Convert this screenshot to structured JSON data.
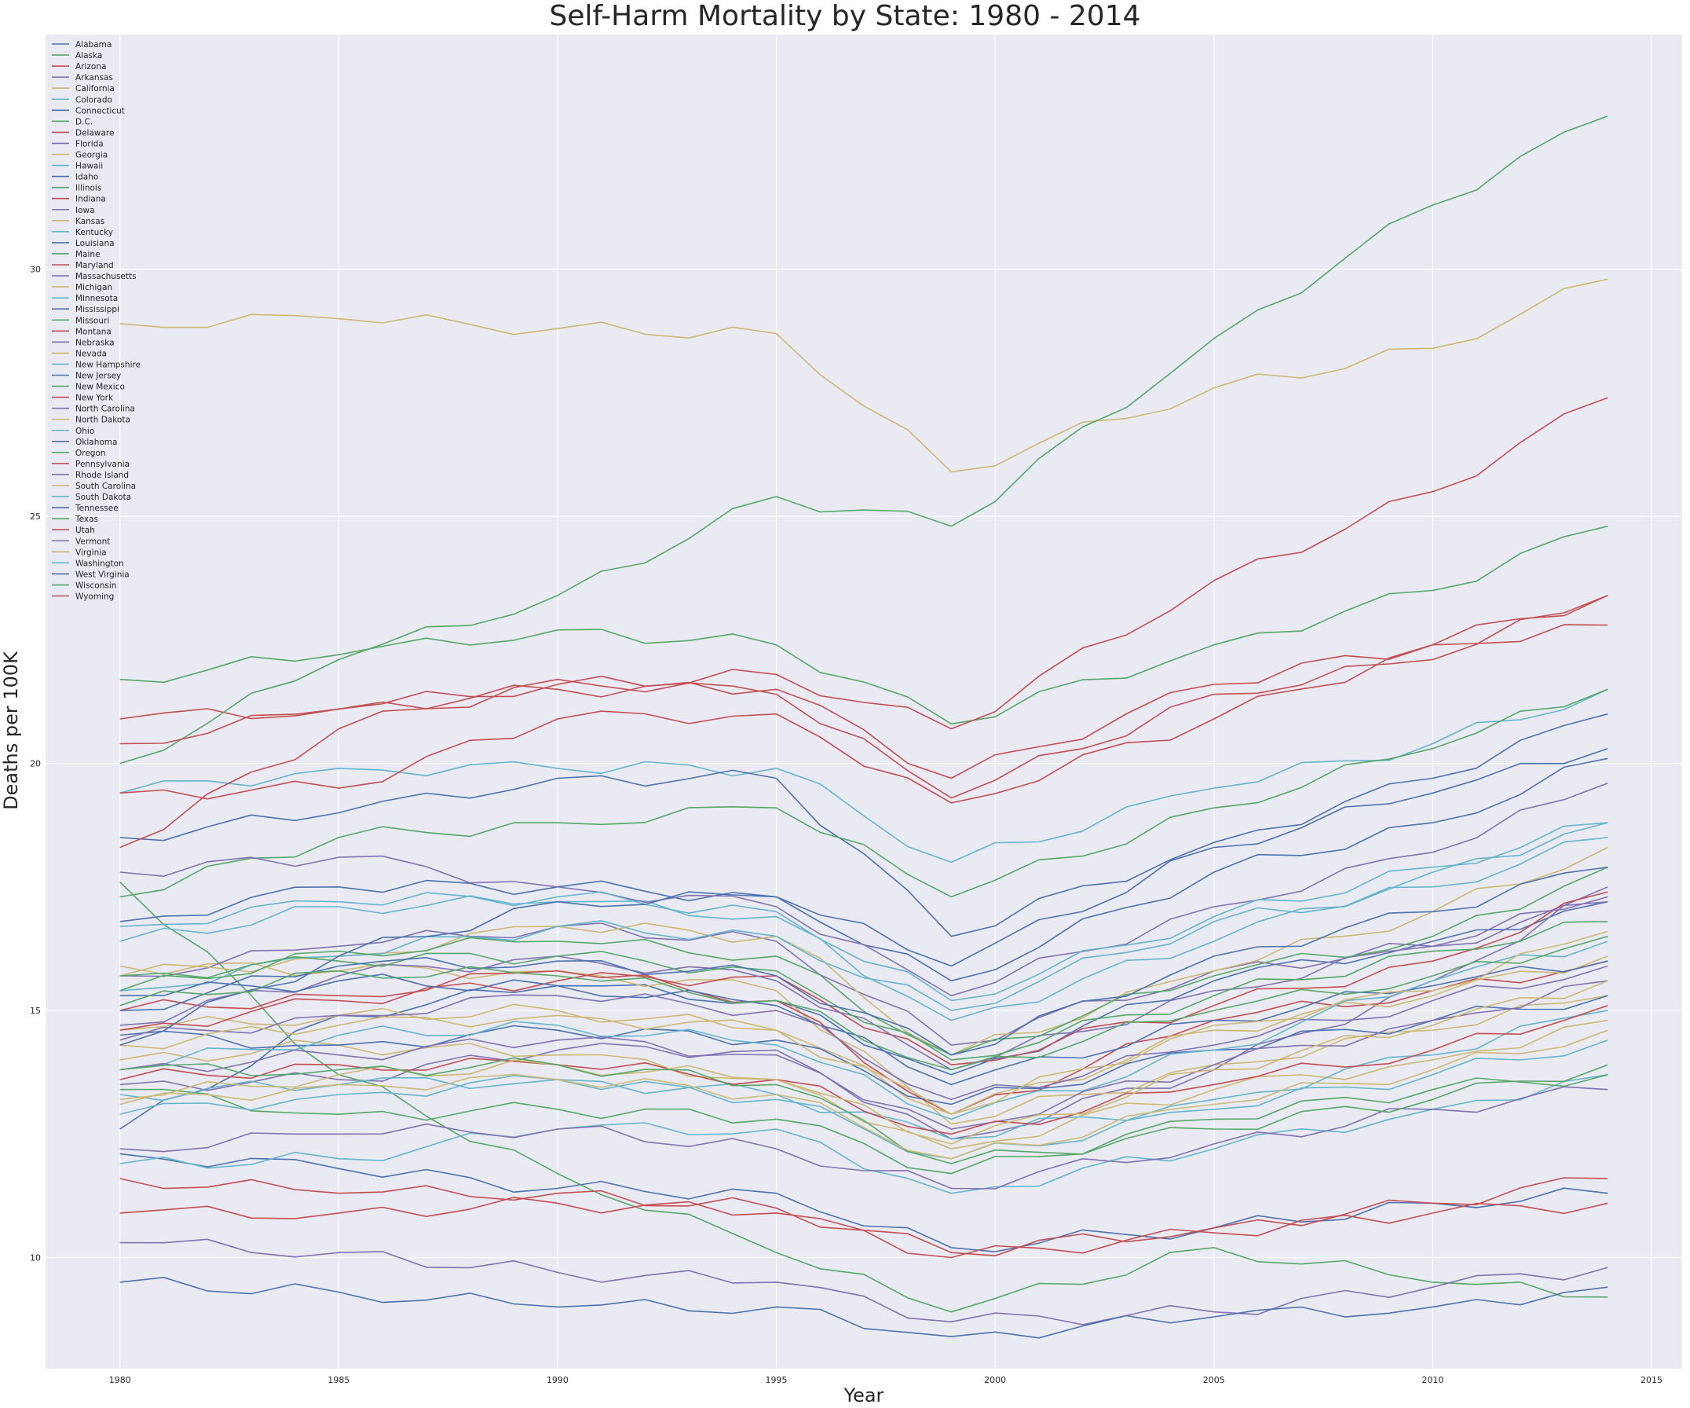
{
  "chart_data": {
    "type": "line",
    "title": "Self-Harm Mortality by State: 1980 - 2014",
    "xlabel": "Year",
    "ylabel": "Deaths per 100K",
    "xlim": [
      1978.3,
      2015.7
    ],
    "ylim": [
      7.75,
      34.75
    ],
    "x_ticks": [
      1980,
      1985,
      1990,
      1995,
      2000,
      2005,
      2010,
      2015
    ],
    "y_ticks": [
      10,
      15,
      20,
      25,
      30
    ],
    "grid": true,
    "legend_position": "top-left",
    "anchor_years": [
      1980,
      1985,
      1990,
      1995,
      1999,
      2005,
      2010,
      2014
    ],
    "series": [
      {
        "name": "Alabama",
        "color": "#4C72B0",
        "anchors": [
          12.6,
          14.9,
          15.5,
          15.2,
          13.7,
          15.6,
          16.4,
          17.2
        ]
      },
      {
        "name": "Alaska",
        "color": "#55A868",
        "anchors": [
          21.7,
          22.2,
          22.7,
          22.4,
          20.8,
          22.4,
          23.5,
          24.8
        ]
      },
      {
        "name": "Arizona",
        "color": "#C44E52",
        "anchors": [
          20.9,
          21.1,
          21.5,
          21.5,
          19.7,
          21.6,
          22.4,
          23.4
        ]
      },
      {
        "name": "Arkansas",
        "color": "#8172B2",
        "anchors": [
          13.5,
          13.6,
          14.2,
          14.2,
          12.4,
          13.8,
          15.6,
          17.5
        ]
      },
      {
        "name": "California",
        "color": "#CCB974",
        "anchors": [
          15.9,
          15.8,
          15.8,
          15.4,
          12.7,
          13.9,
          14.6,
          15.3
        ]
      },
      {
        "name": "Colorado",
        "color": "#64B5CD",
        "anchors": [
          19.4,
          19.9,
          19.9,
          19.9,
          18.0,
          19.5,
          20.4,
          21.5
        ]
      },
      {
        "name": "Connecticut",
        "color": "#4C72B0",
        "anchors": [
          12.1,
          11.8,
          11.4,
          11.3,
          10.2,
          10.6,
          11.1,
          11.3
        ]
      },
      {
        "name": "D.C.",
        "color": "#55A868",
        "anchors": [
          17.6,
          13.7,
          11.7,
          10.1,
          8.9,
          10.2,
          9.5,
          9.2
        ]
      },
      {
        "name": "Delaware",
        "color": "#C44E52",
        "anchors": [
          15.0,
          15.3,
          15.8,
          15.2,
          12.9,
          14.8,
          15.4,
          16.0
        ]
      },
      {
        "name": "Florida",
        "color": "#8172B2",
        "anchors": [
          15.7,
          16.3,
          16.7,
          16.4,
          14.3,
          15.8,
          16.3,
          17.2
        ]
      },
      {
        "name": "Georgia",
        "color": "#CCB974",
        "anchors": [
          14.6,
          14.9,
          15.0,
          14.6,
          12.9,
          14.6,
          15.3,
          16.1
        ]
      },
      {
        "name": "Hawaii",
        "color": "#64B5CD",
        "anchors": [
          11.9,
          12.0,
          12.6,
          12.6,
          11.3,
          12.2,
          13.0,
          13.7
        ]
      },
      {
        "name": "Idaho",
        "color": "#4C72B0",
        "anchors": [
          18.5,
          19.0,
          19.7,
          19.7,
          16.5,
          18.4,
          19.7,
          21.0
        ]
      },
      {
        "name": "Illinois",
        "color": "#55A868",
        "anchors": [
          13.4,
          12.9,
          13.0,
          12.8,
          11.7,
          12.8,
          13.4,
          13.7
        ]
      },
      {
        "name": "Indiana",
        "color": "#C44E52",
        "anchors": [
          14.6,
          15.2,
          15.6,
          15.7,
          13.9,
          15.1,
          16.0,
          17.4
        ]
      },
      {
        "name": "Iowa",
        "color": "#8172B2",
        "anchors": [
          14.7,
          15.7,
          16.1,
          15.6,
          13.8,
          15.4,
          16.3,
          17.3
        ]
      },
      {
        "name": "Kansas",
        "color": "#CCB974",
        "anchors": [
          15.7,
          16.1,
          16.7,
          16.5,
          14.1,
          15.8,
          17.0,
          18.3
        ]
      },
      {
        "name": "Kentucky",
        "color": "#64B5CD",
        "anchors": [
          15.4,
          16.1,
          16.7,
          16.5,
          15.0,
          16.8,
          17.5,
          18.5
        ]
      },
      {
        "name": "Louisiana",
        "color": "#4C72B0",
        "anchors": [
          15.3,
          15.6,
          15.5,
          15.1,
          13.5,
          14.8,
          15.5,
          16.0
        ]
      },
      {
        "name": "Maine",
        "color": "#55A868",
        "anchors": [
          15.4,
          16.2,
          16.4,
          16.1,
          14.1,
          15.7,
          16.5,
          17.9
        ]
      },
      {
        "name": "Maryland",
        "color": "#C44E52",
        "anchors": [
          11.6,
          11.3,
          11.3,
          11.0,
          10.1,
          10.6,
          11.1,
          11.6
        ]
      },
      {
        "name": "Massachusetts",
        "color": "#8172B2",
        "anchors": [
          10.3,
          10.1,
          9.7,
          9.5,
          8.7,
          8.9,
          9.4,
          9.8
        ]
      },
      {
        "name": "Michigan",
        "color": "#CCB974",
        "anchors": [
          14.0,
          14.3,
          14.1,
          13.6,
          12.2,
          13.4,
          14.0,
          14.8
        ]
      },
      {
        "name": "Minnesota",
        "color": "#64B5CD",
        "anchors": [
          13.3,
          13.5,
          13.6,
          13.3,
          12.4,
          13.2,
          14.1,
          15.0
        ]
      },
      {
        "name": "Mississippi",
        "color": "#4C72B0",
        "anchors": [
          14.5,
          14.3,
          14.6,
          14.4,
          13.1,
          14.2,
          14.8,
          15.3
        ]
      },
      {
        "name": "Missouri",
        "color": "#55A868",
        "anchors": [
          15.7,
          16.0,
          16.1,
          15.8,
          14.0,
          15.3,
          16.2,
          16.8
        ]
      },
      {
        "name": "Montana",
        "color": "#C44E52",
        "anchors": [
          18.3,
          20.7,
          21.7,
          21.4,
          19.3,
          21.4,
          22.1,
          23.4
        ]
      },
      {
        "name": "Nebraska",
        "color": "#8172B2",
        "anchors": [
          14.4,
          14.9,
          15.3,
          15.0,
          13.2,
          14.3,
          15.2,
          15.9
        ]
      },
      {
        "name": "Nevada",
        "color": "#CCB974",
        "anchors": [
          28.9,
          29.0,
          28.8,
          28.7,
          25.9,
          27.6,
          28.4,
          29.8
        ]
      },
      {
        "name": "New Hampshire",
        "color": "#64B5CD",
        "anchors": [
          13.8,
          14.5,
          14.7,
          14.3,
          12.8,
          14.2,
          15.6,
          16.4
        ]
      },
      {
        "name": "New Jersey",
        "color": "#4C72B0",
        "anchors": [
          9.5,
          9.3,
          9.0,
          9.0,
          8.4,
          8.8,
          9.0,
          9.4
        ]
      },
      {
        "name": "New Mexico",
        "color": "#55A868",
        "anchors": [
          20.0,
          22.1,
          23.4,
          25.4,
          24.8,
          28.6,
          31.3,
          33.1
        ]
      },
      {
        "name": "New York",
        "color": "#C44E52",
        "anchors": [
          10.9,
          10.9,
          11.1,
          10.9,
          10.0,
          10.5,
          10.9,
          11.1
        ]
      },
      {
        "name": "North Carolina",
        "color": "#8172B2",
        "anchors": [
          13.8,
          14.1,
          14.4,
          14.1,
          12.6,
          13.9,
          14.8,
          15.6
        ]
      },
      {
        "name": "North Dakota",
        "color": "#CCB974",
        "anchors": [
          14.3,
          14.7,
          14.9,
          14.6,
          12.9,
          14.7,
          15.4,
          16.6
        ]
      },
      {
        "name": "Ohio",
        "color": "#64B5CD",
        "anchors": [
          12.9,
          13.3,
          13.6,
          13.2,
          12.0,
          13.0,
          13.7,
          14.4
        ]
      },
      {
        "name": "Oklahoma",
        "color": "#4C72B0",
        "anchors": [
          16.8,
          17.5,
          17.5,
          17.3,
          15.6,
          17.8,
          18.8,
          20.1
        ]
      },
      {
        "name": "Oregon",
        "color": "#55A868",
        "anchors": [
          17.3,
          18.5,
          18.8,
          19.1,
          17.3,
          19.1,
          20.3,
          21.5
        ]
      },
      {
        "name": "Pennsylvania",
        "color": "#C44E52",
        "anchors": [
          13.6,
          13.9,
          13.9,
          13.6,
          12.5,
          13.5,
          14.2,
          15.1
        ]
      },
      {
        "name": "Rhode Island",
        "color": "#8172B2",
        "anchors": [
          12.2,
          12.5,
          12.6,
          12.2,
          11.4,
          12.3,
          13.0,
          13.4
        ]
      },
      {
        "name": "South Carolina",
        "color": "#CCB974",
        "anchors": [
          13.2,
          13.7,
          13.9,
          13.6,
          12.3,
          13.8,
          14.7,
          15.6
        ]
      },
      {
        "name": "South Dakota",
        "color": "#64B5CD",
        "anchors": [
          16.4,
          17.1,
          17.2,
          16.9,
          14.8,
          16.4,
          17.8,
          18.8
        ]
      },
      {
        "name": "Tennessee",
        "color": "#4C72B0",
        "anchors": [
          15.0,
          15.9,
          16.0,
          15.7,
          14.1,
          16.1,
          17.0,
          17.9
        ]
      },
      {
        "name": "Texas",
        "color": "#55A868",
        "anchors": [
          13.8,
          13.8,
          13.9,
          13.5,
          11.9,
          12.6,
          13.2,
          13.9
        ]
      },
      {
        "name": "Utah",
        "color": "#C44E52",
        "anchors": [
          19.4,
          19.5,
          20.9,
          21.0,
          19.2,
          20.9,
          22.4,
          22.8
        ]
      },
      {
        "name": "Vermont",
        "color": "#8172B2",
        "anchors": [
          17.8,
          18.1,
          17.5,
          17.1,
          15.3,
          17.1,
          18.2,
          19.6
        ]
      },
      {
        "name": "Virginia",
        "color": "#CCB974",
        "anchors": [
          13.1,
          13.5,
          13.6,
          13.3,
          12.0,
          13.1,
          13.8,
          14.6
        ]
      },
      {
        "name": "Washington",
        "color": "#64B5CD",
        "anchors": [
          16.7,
          17.2,
          17.3,
          17.0,
          15.2,
          16.9,
          17.9,
          18.8
        ]
      },
      {
        "name": "West Virginia",
        "color": "#4C72B0",
        "anchors": [
          14.3,
          16.1,
          17.2,
          17.3,
          15.9,
          18.3,
          19.4,
          20.3
        ]
      },
      {
        "name": "Wisconsin",
        "color": "#55A868",
        "anchors": [
          15.1,
          15.8,
          15.7,
          15.2,
          13.8,
          15.0,
          15.7,
          16.5
        ]
      },
      {
        "name": "Wyoming",
        "color": "#C44E52",
        "anchors": [
          20.4,
          21.1,
          21.6,
          21.8,
          20.7,
          23.7,
          25.5,
          27.4
        ]
      }
    ]
  }
}
